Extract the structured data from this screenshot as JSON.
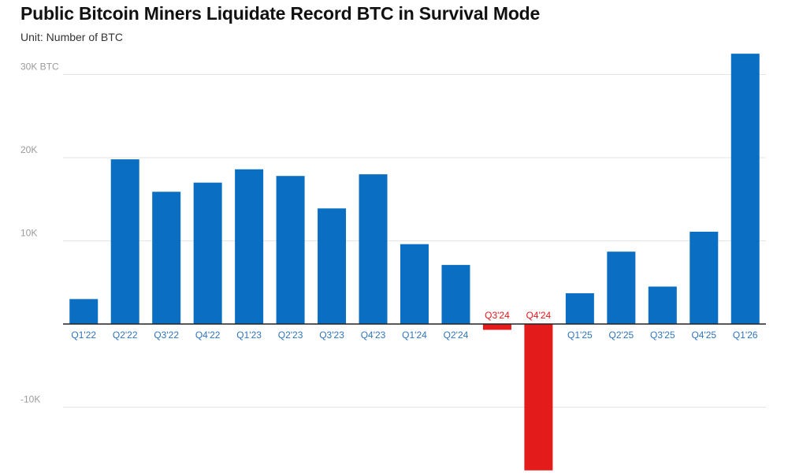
{
  "chart_data": {
    "type": "bar",
    "title": "Public Bitcoin Miners Liquidate Record BTC in Survival Mode",
    "subtitle": "Unit: Number of BTC",
    "categories": [
      "Q1'22",
      "Q2'22",
      "Q3'22",
      "Q4'22",
      "Q1'23",
      "Q2'23",
      "Q3'23",
      "Q4'23",
      "Q1'24",
      "Q2'24",
      "Q3'24",
      "Q4'24",
      "Q1'25",
      "Q2'25",
      "Q3'25",
      "Q4'25",
      "Q1'26"
    ],
    "values": [
      3000,
      19800,
      15900,
      17000,
      18600,
      17800,
      13900,
      18000,
      9600,
      7100,
      -700,
      -17600,
      3700,
      8700,
      4500,
      11100,
      32500
    ],
    "y_ticks": [
      {
        "value": -10000,
        "label": "-10K"
      },
      {
        "value": 10000,
        "label": "10K"
      },
      {
        "value": 20000,
        "label": "20K"
      },
      {
        "value": 30000,
        "label": "30K BTC"
      }
    ],
    "ylim": [
      -18000,
      33500
    ],
    "grid": true,
    "colors": {
      "positive": "#0a6fc2",
      "negative": "#e31b1b",
      "positive_label": "#2f75bd",
      "negative_label": "#e31b1b"
    }
  }
}
